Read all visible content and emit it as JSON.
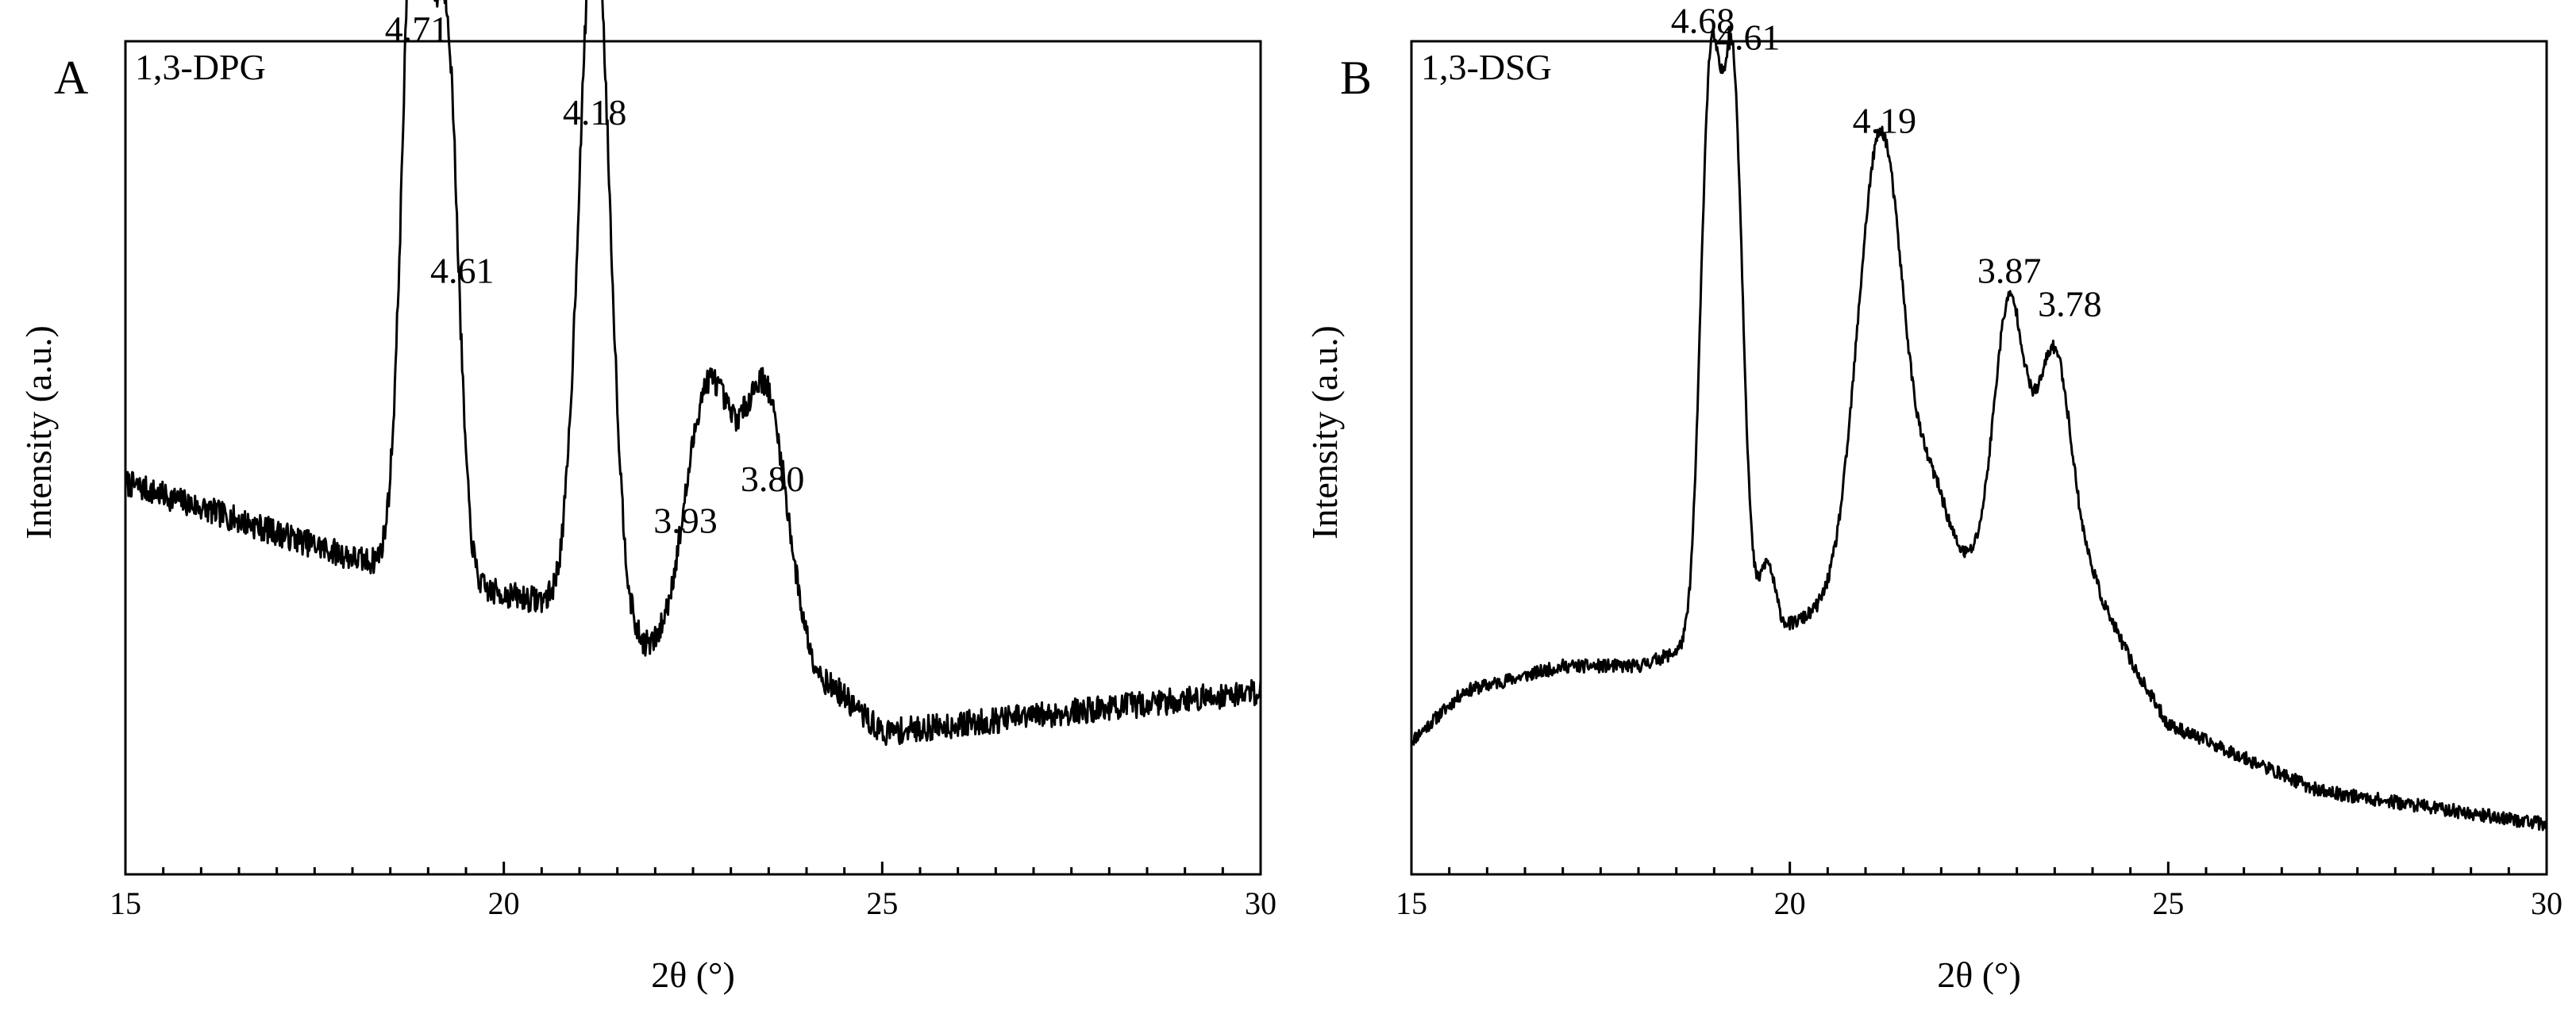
{
  "chart_data": [
    {
      "type": "line",
      "panel_letter": "A",
      "title": "1,3-DPG",
      "xlabel": "2θ (°)",
      "ylabel": "Intensity (a.u.)",
      "xlim": [
        15,
        30
      ],
      "ylim": [
        0,
        100
      ],
      "xticks": [
        15,
        20,
        25,
        30
      ],
      "grid": false,
      "baseline": [
        [
          15,
          47
        ],
        [
          18,
          38
        ],
        [
          19.8,
          34
        ],
        [
          21,
          32
        ],
        [
          22,
          26
        ],
        [
          24.4,
          22
        ],
        [
          25,
          17
        ],
        [
          27,
          19
        ],
        [
          29,
          21
        ],
        [
          30,
          22
        ]
      ],
      "peaks": [
        {
          "x": 18.85,
          "y": 94,
          "w": 0.17
        },
        {
          "x": 19.25,
          "y": 63,
          "w": 0.15
        },
        {
          "x": 21.2,
          "y": 85,
          "w": 0.2
        },
        {
          "x": 22.7,
          "y": 33,
          "w": 0.3
        },
        {
          "x": 23.45,
          "y": 34,
          "w": 0.3
        }
      ],
      "noise": 1.6,
      "seed": 7,
      "annotations": [
        {
          "text": "4.71",
          "x": 18.85,
          "y": 100
        },
        {
          "text": "4.61",
          "x": 19.45,
          "y": 71
        },
        {
          "text": "4.18",
          "x": 21.2,
          "y": 90
        },
        {
          "text": "3.93",
          "x": 22.4,
          "y": 41
        },
        {
          "text": "3.80",
          "x": 23.55,
          "y": 46
        }
      ]
    },
    {
      "type": "line",
      "panel_letter": "B",
      "title": "1,3-DSG",
      "xlabel": "2θ (°)",
      "ylabel": "Intensity (a.u.)",
      "xlim": [
        15,
        30
      ],
      "ylim": [
        0,
        100
      ],
      "xticks": [
        15,
        20,
        25,
        30
      ],
      "grid": false,
      "baseline": [
        [
          15,
          16
        ],
        [
          15.7,
          22
        ],
        [
          17,
          25
        ],
        [
          18,
          25
        ],
        [
          18.6,
          27
        ],
        [
          20,
          30
        ],
        [
          22,
          37
        ],
        [
          23.2,
          38
        ],
        [
          24,
          35
        ],
        [
          24.6,
          24
        ],
        [
          25,
          18
        ],
        [
          27,
          10
        ],
        [
          30,
          6
        ]
      ],
      "peaks": [
        {
          "x": 18.95,
          "y": 67,
          "w": 0.13
        },
        {
          "x": 19.25,
          "y": 66,
          "w": 0.13
        },
        {
          "x": 19.7,
          "y": 8,
          "w": 0.1
        },
        {
          "x": 21.2,
          "y": 55,
          "w": 0.3
        },
        {
          "x": 21.9,
          "y": 8,
          "w": 0.2
        },
        {
          "x": 22.9,
          "y": 31,
          "w": 0.2
        },
        {
          "x": 23.5,
          "y": 26,
          "w": 0.22
        }
      ],
      "noise": 0.8,
      "seed": 11,
      "annotations": [
        {
          "text": "4.68",
          "x": 18.85,
          "y": 101
        },
        {
          "text": "4.61",
          "x": 19.45,
          "y": 99
        },
        {
          "text": "4.19",
          "x": 21.25,
          "y": 89
        },
        {
          "text": "3.87",
          "x": 22.9,
          "y": 71
        },
        {
          "text": "3.78",
          "x": 23.7,
          "y": 67
        }
      ]
    }
  ]
}
